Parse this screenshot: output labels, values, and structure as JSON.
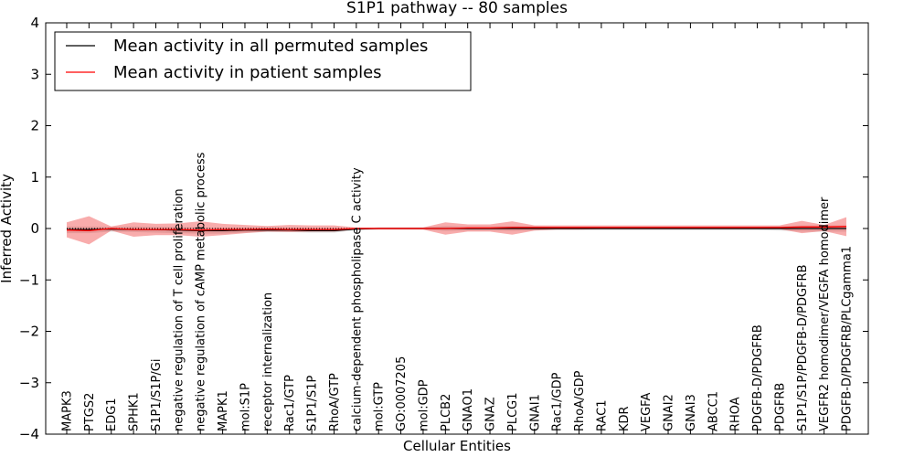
{
  "chart_data": {
    "type": "line",
    "title": "S1P1 pathway -- 80 samples",
    "xlabel": "Cellular Entities",
    "ylabel": "Inferred Activity",
    "ylim": [
      -4,
      4
    ],
    "yticks": [
      -4,
      -3,
      -2,
      -1,
      0,
      1,
      2,
      3,
      4
    ],
    "grid": false,
    "legend_position": "top-left",
    "categories": [
      "MAPK3",
      "PTGS2",
      "EDG1",
      "SPHK1",
      "S1P1/S1P/Gi",
      "negative regulation of T cell proliferation",
      "negative regulation of cAMP metabolic process",
      "MAPK1",
      "mol:S1P",
      "receptor internalization",
      "Rac1/GTP",
      "S1P1/S1P",
      "RhoA/GTP",
      "calcium-dependent phospholipase C activity",
      "mol:GTP",
      "GO:0007205",
      "mol:GDP",
      "PLCB2",
      "GNAO1",
      "GNAZ",
      "PLCG1",
      "GNAI1",
      "Rac1/GDP",
      "RhoA/GDP",
      "RAC1",
      "KDR",
      "VEGFA",
      "GNAI2",
      "GNAI3",
      "ABCC1",
      "RHOA",
      "PDGFB-D/PDGFRB",
      "PDGFRB",
      "S1P1/S1P/PDGFB-D/PDGFRB",
      "VEGFR2 homodimer/VEGFA homodimer",
      "PDGFB-D/PDGFRB/PLCgamma1"
    ],
    "series": [
      {
        "name": "Mean activity in all permuted samples",
        "color": "#000000",
        "values": [
          -0.02,
          -0.02,
          -0.01,
          -0.02,
          -0.02,
          -0.03,
          -0.04,
          -0.04,
          -0.03,
          -0.03,
          -0.03,
          -0.04,
          -0.04,
          -0.01,
          0.0,
          0.0,
          0.0,
          0.0,
          0.0,
          0.0,
          0.0,
          0.0,
          0.0,
          0.0,
          0.0,
          0.0,
          0.0,
          0.0,
          0.0,
          0.0,
          0.0,
          0.0,
          0.0,
          0.0,
          0.0,
          0.0
        ],
        "band_low": [
          -0.09,
          -0.09,
          -0.06,
          -0.07,
          -0.08,
          -0.09,
          -0.1,
          -0.1,
          -0.08,
          -0.07,
          -0.07,
          -0.08,
          -0.08,
          -0.03,
          -0.02,
          -0.02,
          -0.02,
          -0.05,
          -0.04,
          -0.04,
          -0.05,
          -0.04,
          -0.03,
          -0.03,
          -0.03,
          -0.03,
          -0.03,
          -0.03,
          -0.03,
          -0.03,
          -0.03,
          -0.03,
          -0.04,
          -0.06,
          -0.06,
          -0.06
        ],
        "band_high": [
          0.04,
          0.04,
          0.03,
          0.04,
          0.03,
          0.03,
          0.02,
          0.02,
          0.02,
          0.02,
          0.02,
          0.01,
          0.01,
          0.01,
          0.02,
          0.02,
          0.02,
          0.05,
          0.04,
          0.04,
          0.05,
          0.04,
          0.03,
          0.03,
          0.03,
          0.03,
          0.03,
          0.03,
          0.03,
          0.03,
          0.03,
          0.03,
          0.04,
          0.06,
          0.06,
          0.06
        ]
      },
      {
        "name": "Mean activity in patient samples",
        "color": "#ff0000",
        "values": [
          -0.03,
          -0.04,
          0.0,
          -0.02,
          -0.02,
          -0.02,
          -0.03,
          -0.02,
          -0.02,
          -0.01,
          -0.02,
          -0.02,
          -0.02,
          0.0,
          0.0,
          0.0,
          0.0,
          0.0,
          0.01,
          0.01,
          0.02,
          0.02,
          0.02,
          0.02,
          0.02,
          0.02,
          0.02,
          0.02,
          0.02,
          0.02,
          0.02,
          0.02,
          0.02,
          0.03,
          0.03,
          0.04
        ],
        "band_low": [
          -0.17,
          -0.31,
          -0.04,
          -0.16,
          -0.13,
          -0.13,
          -0.16,
          -0.13,
          -0.09,
          -0.06,
          -0.07,
          -0.06,
          -0.06,
          -0.02,
          -0.02,
          -0.02,
          -0.02,
          -0.12,
          -0.06,
          -0.06,
          -0.12,
          -0.04,
          -0.02,
          -0.02,
          -0.01,
          -0.01,
          -0.01,
          -0.01,
          -0.01,
          -0.01,
          -0.01,
          -0.01,
          -0.01,
          -0.09,
          -0.05,
          -0.15
        ],
        "band_high": [
          0.12,
          0.24,
          0.04,
          0.12,
          0.09,
          0.1,
          0.14,
          0.09,
          0.07,
          0.05,
          0.07,
          0.06,
          0.06,
          0.02,
          0.02,
          0.02,
          0.02,
          0.12,
          0.08,
          0.08,
          0.14,
          0.06,
          0.06,
          0.06,
          0.06,
          0.06,
          0.06,
          0.06,
          0.06,
          0.06,
          0.06,
          0.06,
          0.06,
          0.15,
          0.07,
          0.22
        ]
      }
    ]
  }
}
